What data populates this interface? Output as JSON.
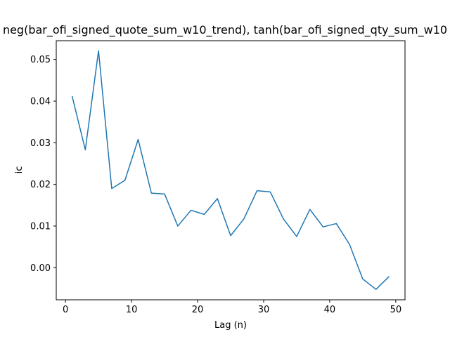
{
  "chart_data": {
    "type": "line",
    "title": "neg(bar_ofi_signed_quote_sum_w10_trend), tanh(bar_ofi_signed_qty_sum_w10",
    "xlabel": "Lag (n)",
    "ylabel": "ic",
    "xlim": [
      -1.4,
      51.4
    ],
    "ylim": [
      -0.0077,
      0.0545
    ],
    "xticks": [
      0,
      10,
      20,
      30,
      40,
      50
    ],
    "xtick_labels": [
      "0",
      "10",
      "20",
      "30",
      "40",
      "50"
    ],
    "yticks": [
      0.0,
      0.01,
      0.02,
      0.03,
      0.04,
      0.05
    ],
    "ytick_labels": [
      "0.00",
      "0.01",
      "0.02",
      "0.03",
      "0.04",
      "0.05"
    ],
    "grid": false,
    "series": [
      {
        "color": "#1f77b4",
        "x": [
          1,
          3,
          5,
          7,
          9,
          11,
          13,
          15,
          17,
          19,
          21,
          23,
          25,
          27,
          29,
          31,
          33,
          35,
          37,
          39,
          41,
          43,
          45,
          47,
          49
        ],
        "y": [
          0.0412,
          0.0283,
          0.0521,
          0.019,
          0.021,
          0.0308,
          0.0179,
          0.0177,
          0.01,
          0.0138,
          0.0128,
          0.0166,
          0.0077,
          0.0117,
          0.0185,
          0.0182,
          0.0117,
          0.0075,
          0.014,
          0.0098,
          0.0106,
          0.0056,
          -0.0027,
          -0.0052,
          -0.0021
        ]
      }
    ]
  }
}
